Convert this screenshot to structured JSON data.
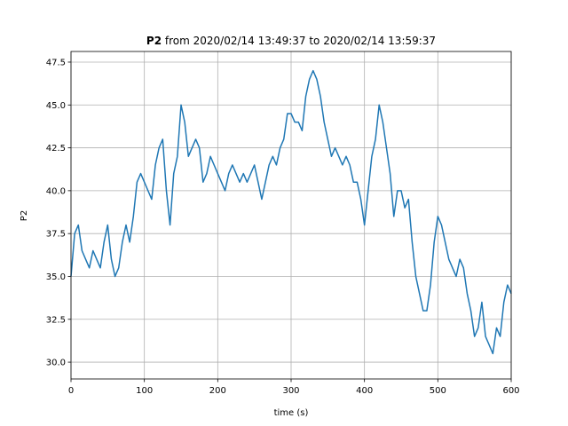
{
  "chart_data": {
    "type": "line",
    "title": {
      "variable": "P2",
      "range": "from 2020/02/14 13:49:37 to 2020/02/14 13:59:37"
    },
    "x_label": "time (s)",
    "y_label": "P2",
    "x": [
      0,
      5,
      10,
      15,
      20,
      25,
      30,
      35,
      40,
      45,
      50,
      55,
      60,
      65,
      70,
      75,
      80,
      85,
      90,
      95,
      100,
      105,
      110,
      115,
      120,
      125,
      130,
      135,
      140,
      145,
      150,
      155,
      160,
      165,
      170,
      175,
      180,
      185,
      190,
      195,
      200,
      205,
      210,
      215,
      220,
      225,
      230,
      235,
      240,
      245,
      250,
      255,
      260,
      265,
      270,
      275,
      280,
      285,
      290,
      295,
      300,
      305,
      310,
      315,
      320,
      325,
      330,
      335,
      340,
      345,
      350,
      355,
      360,
      365,
      370,
      375,
      380,
      385,
      390,
      395,
      400,
      405,
      410,
      415,
      420,
      425,
      430,
      435,
      440,
      445,
      450,
      455,
      460,
      465,
      470,
      475,
      480,
      485,
      490,
      495,
      500,
      505,
      510,
      515,
      520,
      525,
      530,
      535,
      540,
      545,
      550,
      555,
      560,
      565,
      570,
      575,
      580,
      585,
      590,
      595,
      600
    ],
    "series": [
      {
        "name": "P2",
        "color": "#1f77b4",
        "values": [
          35,
          37.5,
          38,
          36.5,
          36,
          35.5,
          36.5,
          36,
          35.5,
          37,
          38,
          36,
          35,
          35.5,
          37,
          38,
          37,
          38.5,
          40.5,
          41,
          40.5,
          40,
          39.5,
          41.5,
          42.5,
          43,
          40,
          38,
          41,
          42,
          45,
          44,
          42,
          42.5,
          43,
          42.5,
          40.5,
          41,
          42,
          41.5,
          41,
          40.5,
          40,
          41,
          41.5,
          41,
          40.5,
          41,
          40.5,
          41,
          41.5,
          40.5,
          39.5,
          40.5,
          41.5,
          42,
          41.5,
          42.5,
          43,
          44.5,
          44.5,
          44,
          44,
          43.5,
          45.5,
          46.5,
          47,
          46.5,
          45.5,
          44,
          43,
          42,
          42.5,
          42,
          41.5,
          42,
          41.5,
          40.5,
          40.5,
          39.5,
          38,
          40,
          42,
          43,
          45,
          44,
          42.5,
          41,
          38.5,
          40,
          40,
          39,
          39.5,
          37,
          35,
          34,
          33,
          33,
          34.5,
          37,
          38.5,
          38,
          37,
          36,
          35.5,
          35,
          36,
          35.5,
          34,
          33,
          31.5,
          32,
          33.5,
          31.5,
          31,
          30.5,
          32,
          31.5,
          33.5,
          34.5,
          34
        ]
      }
    ],
    "xlim": [
      0,
      600
    ],
    "xticks": [
      0,
      100,
      200,
      300,
      400,
      500,
      600
    ],
    "ylim": [
      29.02,
      48.12
    ],
    "yticks": [
      {
        "value": 30,
        "label": "30.0"
      },
      32.5,
      {
        "value": 35,
        "label": "35.0"
      },
      37.5,
      {
        "value": 40,
        "label": "40.0"
      },
      42.5,
      {
        "value": 45,
        "label": "45.0"
      },
      47.5
    ],
    "grid": true
  }
}
